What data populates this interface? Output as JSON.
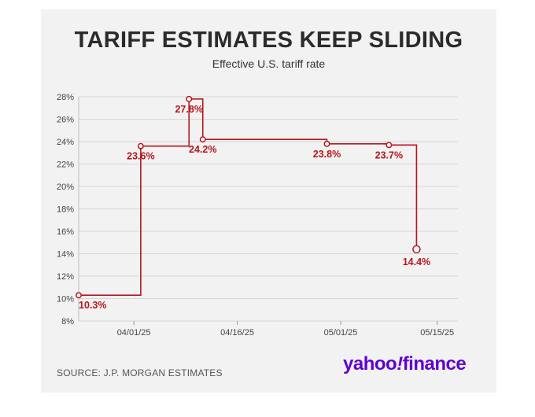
{
  "title": "TARIFF ESTIMATES KEEP SLIDING",
  "subtitle": "Effective U.S. tariff rate",
  "source": "SOURCE: J.P. MORGAN ESTIMATES",
  "logo": {
    "part1": "yahoo",
    "bang": "!",
    "part2": "finance"
  },
  "colors": {
    "line": "#b5161c",
    "label": "#b5161c",
    "grid": "#d6d6d6",
    "background": "#f2f2f2",
    "brand": "#5f01d1"
  },
  "chart_data": {
    "type": "line",
    "step": true,
    "ylim": [
      8,
      28
    ],
    "yticks": [
      "8%",
      "10%",
      "12%",
      "14%",
      "16%",
      "18%",
      "20%",
      "22%",
      "24%",
      "26%",
      "28%"
    ],
    "xticks": [
      "04/01/25",
      "04/16/25",
      "05/01/25",
      "05/15/25"
    ],
    "xlim": [
      "2025-03-24",
      "2025-05-18"
    ],
    "grid": true,
    "series": [
      {
        "points": [
          {
            "x": "2025-03-24",
            "y": 10.3,
            "label": "10.3%"
          },
          {
            "x": "2025-04-02",
            "y": 23.6,
            "label": "23.6%"
          },
          {
            "x": "2025-04-09",
            "y": 27.8,
            "label": "27.8%"
          },
          {
            "x": "2025-04-11",
            "y": 24.2,
            "label": "24.2%"
          },
          {
            "x": "2025-04-29",
            "y": 23.8,
            "label": "23.8%"
          },
          {
            "x": "2025-05-08",
            "y": 23.7,
            "label": "23.7%"
          },
          {
            "x": "2025-05-12",
            "y": 14.4,
            "label": "14.4%"
          }
        ]
      }
    ]
  }
}
